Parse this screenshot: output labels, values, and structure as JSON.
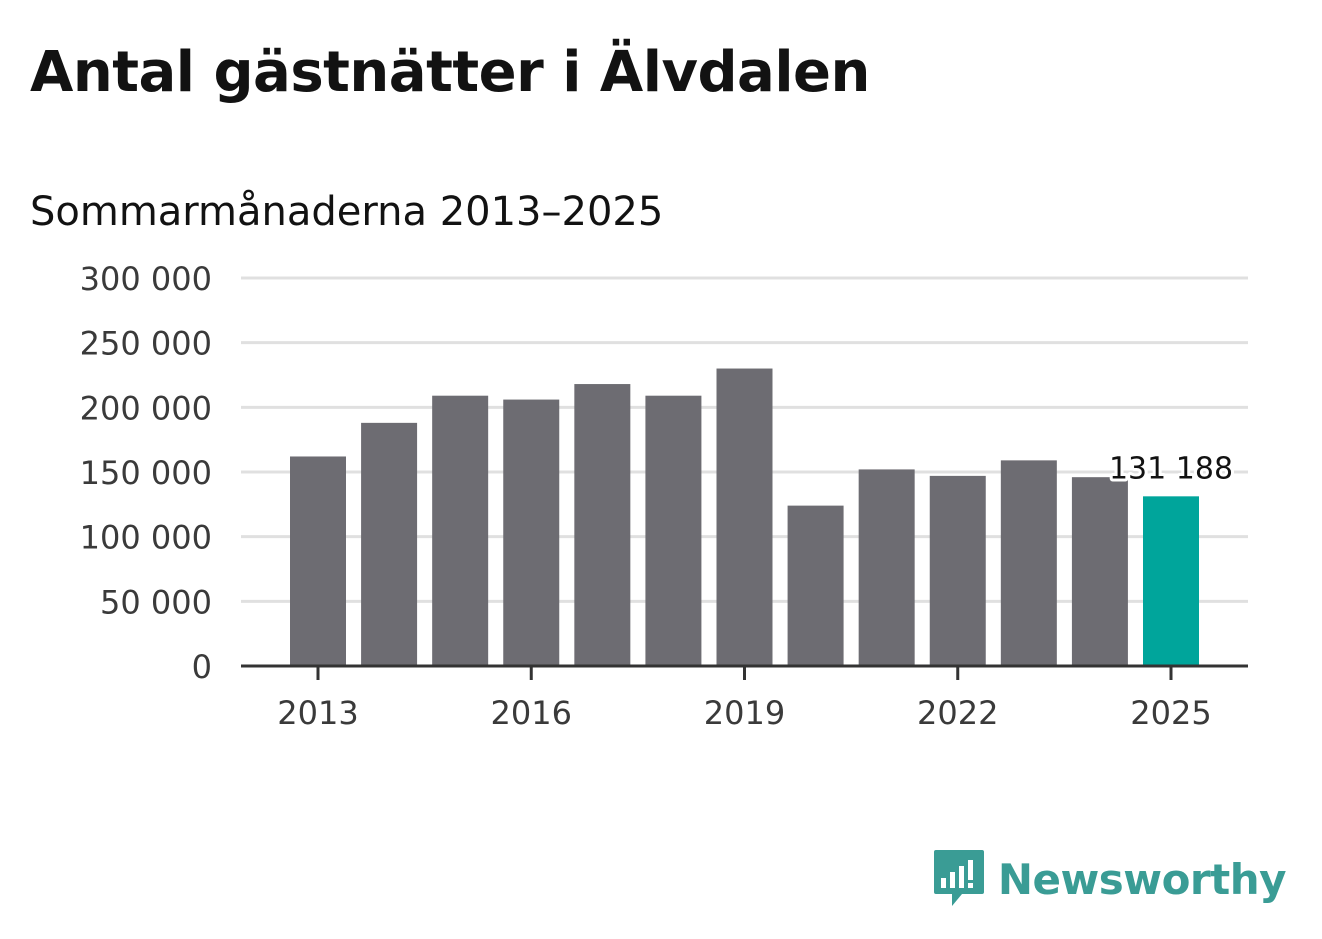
{
  "title": "Antal gästnätter i Älvdalen",
  "subtitle": "Sommarmånaderna 2013–2025",
  "brand": {
    "name": "Newsworthy",
    "icon": "newsworthy-logo-icon",
    "color": "#3a9c95"
  },
  "colors": {
    "bar": "#6d6c72",
    "highlight": "#00a59b",
    "grid": "#e0e0e0",
    "axis": "#333333"
  },
  "chart_data": {
    "type": "bar",
    "title": "Antal gästnätter i Älvdalen",
    "subtitle": "Sommarmånaderna 2013–2025",
    "xlabel": "",
    "ylabel": "",
    "categories": [
      "2013",
      "2014",
      "2015",
      "2016",
      "2017",
      "2018",
      "2019",
      "2020",
      "2021",
      "2022",
      "2023",
      "2024",
      "2025"
    ],
    "values": [
      162000,
      188000,
      209000,
      206000,
      218000,
      209000,
      230000,
      124000,
      152000,
      147000,
      159000,
      146000,
      131188
    ],
    "highlight_index": 12,
    "ylim": [
      0,
      300000
    ],
    "yticks": [
      0,
      50000,
      100000,
      150000,
      200000,
      250000,
      300000
    ],
    "ytick_labels": [
      "0",
      "50 000",
      "100 000",
      "150 000",
      "200 000",
      "250 000",
      "300 000"
    ],
    "xtick_labels": [
      "2013",
      "2016",
      "2019",
      "2022",
      "2025"
    ],
    "data_labels": [
      {
        "category": "2025",
        "text": "131 188"
      }
    ],
    "grid": true,
    "legend": "none"
  }
}
